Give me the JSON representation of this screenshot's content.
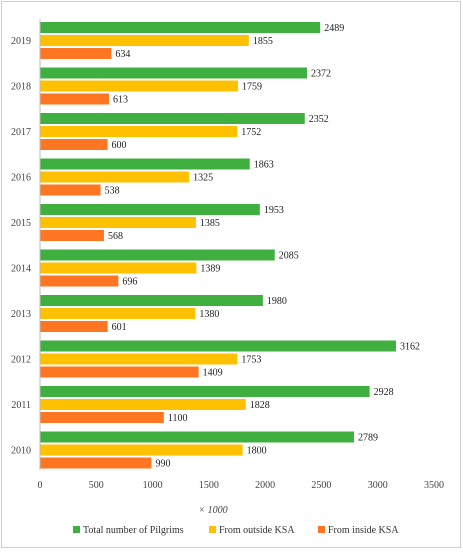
{
  "chart_data": {
    "type": "bar",
    "orientation": "horizontal",
    "categories": [
      "2010",
      "2011",
      "2012",
      "2013",
      "2014",
      "2015",
      "2016",
      "2017",
      "2018",
      "2019"
    ],
    "series": [
      {
        "name": "Total number of Pilgrims",
        "color": "#3faf3f",
        "values": [
          2789,
          2928,
          3162,
          1980,
          2085,
          1953,
          1863,
          2352,
          2372,
          2489
        ]
      },
      {
        "name": "From outside KSA",
        "color": "#ffc000",
        "values": [
          1800,
          1828,
          1753,
          1380,
          1389,
          1385,
          1325,
          1752,
          1759,
          1855
        ]
      },
      {
        "name": "From inside KSA",
        "color": "#ff7622",
        "values": [
          990,
          1100,
          1409,
          601,
          696,
          568,
          538,
          600,
          613,
          634
        ]
      }
    ],
    "xlim": [
      0,
      3500
    ],
    "xticks": [
      0,
      500,
      1000,
      1500,
      2000,
      2500,
      3000,
      3500
    ],
    "x_unit_label": "× 1000",
    "legend_position": "bottom",
    "grid": false
  }
}
